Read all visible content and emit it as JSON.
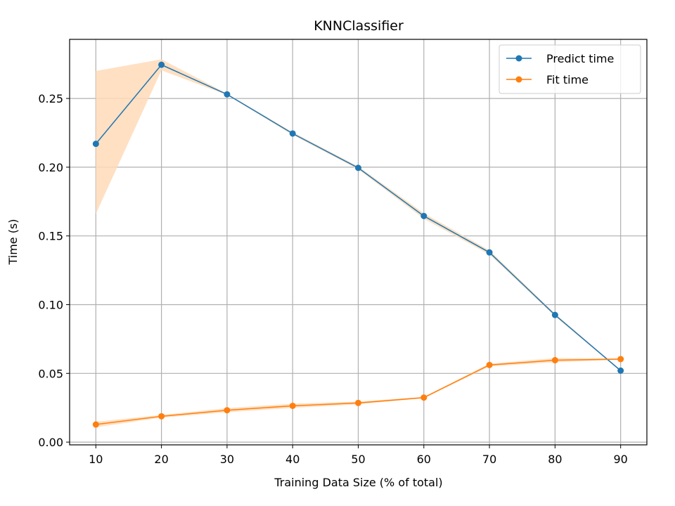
{
  "chart_data": {
    "type": "line",
    "title": "KNNClassifier",
    "xlabel": "Training Data Size (% of total)",
    "ylabel": "Time (s)",
    "x": [
      10,
      20,
      30,
      40,
      50,
      60,
      70,
      80,
      90
    ],
    "xticks": [
      "10",
      "20",
      "30",
      "40",
      "50",
      "60",
      "70",
      "80",
      "90"
    ],
    "yticks": [
      "0.00",
      "0.05",
      "0.10",
      "0.15",
      "0.20",
      "0.25"
    ],
    "xlim": [
      6,
      94
    ],
    "ylim": [
      -0.002,
      0.293
    ],
    "grid": true,
    "legend": "top-right",
    "series": [
      {
        "name": "Predict time",
        "color": "#1f77b4",
        "values": [
          0.217,
          0.2745,
          0.253,
          0.2245,
          0.1995,
          0.1645,
          0.138,
          0.0925,
          0.052
        ],
        "band_low": [
          0.166,
          0.2705,
          0.2525,
          0.2235,
          0.1985,
          0.1625,
          0.1365,
          0.0915,
          0.0515
        ],
        "band_high": [
          0.27,
          0.2785,
          0.2535,
          0.2255,
          0.2005,
          0.1665,
          0.1395,
          0.0935,
          0.0525
        ]
      },
      {
        "name": "Fit time",
        "color": "#ff7f0e",
        "values": [
          0.0128,
          0.0188,
          0.0232,
          0.0264,
          0.0285,
          0.0324,
          0.0561,
          0.0596,
          0.0604
        ],
        "band_low": [
          0.0108,
          0.0178,
          0.0217,
          0.0249,
          0.0275,
          0.0319,
          0.0551,
          0.0581,
          0.0599
        ],
        "band_high": [
          0.0148,
          0.0198,
          0.0247,
          0.0279,
          0.0295,
          0.0329,
          0.0571,
          0.0611,
          0.0609
        ]
      }
    ]
  }
}
